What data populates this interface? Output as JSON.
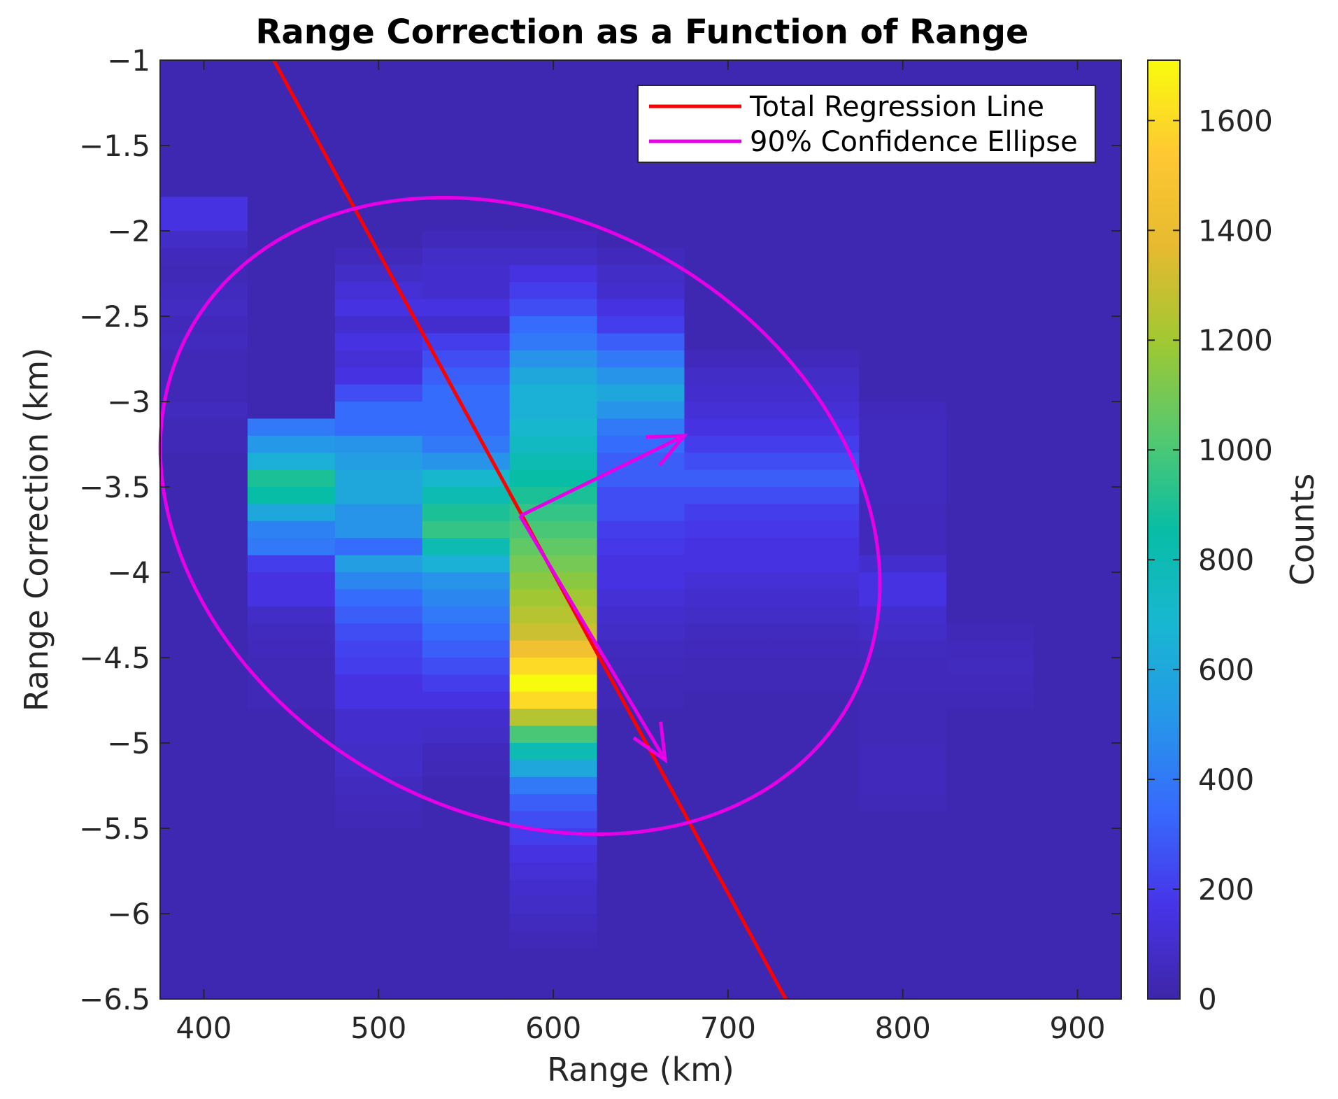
{
  "chart_data": {
    "type": "heatmap",
    "title": "Range Correction as a Function of Range",
    "xlabel": "Range (km)",
    "ylabel": "Range Correction (km)",
    "xlim": [
      375,
      925
    ],
    "ylim": [
      -6.5,
      -1
    ],
    "x_ticks": [
      400,
      500,
      600,
      700,
      800,
      900
    ],
    "x_tick_labels": [
      "400",
      "500",
      "600",
      "700",
      "800",
      "900"
    ],
    "y_ticks": [
      -1,
      -1.5,
      -2,
      -2.5,
      -3,
      -3.5,
      -4,
      -4.5,
      -5,
      -5.5,
      -6,
      -6.5
    ],
    "y_tick_labels": [
      "−1",
      "−1.5",
      "−2",
      "−2.5",
      "−3",
      "−3.5",
      "−4",
      "−4.5",
      "−5",
      "−5.5",
      "−6",
      "−6.5"
    ],
    "colorbar": {
      "label": "Counts",
      "lim": [
        0,
        1710
      ],
      "ticks": [
        0,
        200,
        400,
        600,
        800,
        1000,
        1200,
        1400,
        1600
      ],
      "tick_labels": [
        "0",
        "200",
        "400",
        "600",
        "800",
        "1000",
        "1200",
        "1400",
        "1600"
      ],
      "colormap": "parula"
    },
    "grid": false,
    "legend_position": "top-right",
    "bins": {
      "x_edges": [
        375,
        425,
        475,
        525,
        575,
        625,
        675,
        725,
        775,
        825,
        875,
        925
      ],
      "y_top": -1,
      "y_step": 0.1,
      "row_count": 55,
      "counts_by_column": [
        [
          25,
          25,
          25,
          25,
          25,
          25,
          25,
          25,
          150,
          150,
          80,
          50,
          40,
          60,
          70,
          50,
          60,
          40,
          40,
          40,
          60,
          40,
          40,
          25,
          25,
          25,
          25,
          25,
          25,
          25,
          25,
          25,
          25,
          25,
          25,
          25,
          25,
          25,
          25,
          25,
          25,
          25,
          25,
          25,
          25,
          25,
          25,
          25,
          25,
          25,
          25,
          25,
          25,
          25,
          25
        ],
        [
          25,
          25,
          25,
          25,
          25,
          25,
          25,
          25,
          25,
          25,
          25,
          25,
          25,
          25,
          25,
          25,
          25,
          25,
          25,
          25,
          25,
          400,
          520,
          640,
          900,
          850,
          600,
          430,
          400,
          200,
          150,
          150,
          80,
          60,
          50,
          40,
          40,
          40,
          25,
          25,
          25,
          25,
          25,
          25,
          25,
          25,
          25,
          25,
          25,
          25,
          25,
          25,
          25,
          25,
          25
        ],
        [
          25,
          25,
          25,
          25,
          25,
          25,
          25,
          25,
          25,
          25,
          25,
          50,
          80,
          120,
          150,
          100,
          150,
          120,
          150,
          250,
          350,
          350,
          500,
          550,
          600,
          600,
          500,
          500,
          350,
          550,
          450,
          350,
          300,
          250,
          220,
          200,
          150,
          150,
          100,
          100,
          80,
          80,
          60,
          50,
          40,
          25,
          25,
          25,
          25,
          25,
          25,
          25,
          25,
          25,
          25
        ],
        [
          25,
          25,
          25,
          25,
          25,
          25,
          25,
          25,
          25,
          25,
          50,
          80,
          100,
          100,
          150,
          100,
          200,
          250,
          300,
          350,
          350,
          350,
          400,
          500,
          700,
          800,
          900,
          950,
          800,
          650,
          500,
          450,
          400,
          350,
          300,
          250,
          200,
          150,
          100,
          80,
          50,
          40,
          25,
          25,
          25,
          25,
          25,
          25,
          25,
          25,
          25,
          25,
          25,
          25,
          25
        ],
        [
          25,
          25,
          25,
          25,
          25,
          25,
          25,
          25,
          25,
          25,
          50,
          80,
          150,
          200,
          250,
          350,
          400,
          500,
          600,
          650,
          650,
          700,
          750,
          800,
          850,
          900,
          950,
          1000,
          1050,
          1100,
          1150,
          1200,
          1250,
          1300,
          1450,
          1600,
          1710,
          1600,
          1250,
          1000,
          800,
          600,
          400,
          300,
          250,
          200,
          150,
          120,
          100,
          80,
          60,
          40,
          25,
          25,
          25
        ],
        [
          25,
          25,
          25,
          25,
          25,
          25,
          25,
          25,
          25,
          25,
          25,
          50,
          80,
          100,
          150,
          200,
          300,
          400,
          500,
          600,
          500,
          400,
          350,
          300,
          300,
          250,
          250,
          200,
          180,
          150,
          150,
          120,
          100,
          80,
          60,
          50,
          40,
          40,
          25,
          25,
          25,
          25,
          25,
          25,
          25,
          25,
          25,
          25,
          25,
          25,
          25,
          25,
          25,
          25,
          25
        ],
        [
          25,
          25,
          25,
          25,
          25,
          25,
          25,
          25,
          25,
          25,
          25,
          25,
          25,
          25,
          25,
          25,
          25,
          50,
          80,
          100,
          120,
          150,
          200,
          250,
          300,
          250,
          200,
          180,
          150,
          150,
          120,
          100,
          80,
          60,
          50,
          40,
          40,
          25,
          25,
          25,
          25,
          25,
          25,
          25,
          25,
          25,
          25,
          25,
          25,
          25,
          25,
          25,
          25,
          25,
          25
        ],
        [
          25,
          25,
          25,
          25,
          25,
          25,
          25,
          25,
          25,
          25,
          25,
          25,
          25,
          25,
          25,
          25,
          25,
          50,
          80,
          100,
          120,
          150,
          200,
          250,
          300,
          250,
          200,
          180,
          150,
          150,
          120,
          100,
          80,
          60,
          50,
          40,
          40,
          25,
          25,
          25,
          25,
          25,
          25,
          25,
          25,
          25,
          25,
          25,
          25,
          25,
          25,
          25,
          25,
          25,
          25
        ],
        [
          25,
          25,
          25,
          25,
          25,
          25,
          25,
          25,
          25,
          25,
          25,
          25,
          25,
          25,
          25,
          25,
          25,
          25,
          25,
          25,
          50,
          60,
          60,
          60,
          60,
          60,
          50,
          50,
          50,
          100,
          150,
          150,
          100,
          80,
          60,
          50,
          50,
          40,
          40,
          40,
          50,
          50,
          50,
          40,
          25,
          25,
          25,
          25,
          25,
          25,
          25,
          25,
          25,
          25,
          25
        ],
        [
          25,
          25,
          25,
          25,
          25,
          25,
          25,
          25,
          25,
          25,
          25,
          25,
          25,
          25,
          25,
          25,
          25,
          25,
          25,
          25,
          25,
          25,
          25,
          25,
          25,
          25,
          25,
          25,
          25,
          25,
          25,
          25,
          25,
          40,
          50,
          60,
          50,
          40,
          25,
          25,
          25,
          25,
          25,
          25,
          25,
          25,
          25,
          25,
          25,
          25,
          25,
          25,
          25,
          25,
          25
        ],
        [
          25,
          25,
          25,
          25,
          25,
          25,
          25,
          25,
          25,
          25,
          25,
          25,
          25,
          25,
          25,
          25,
          25,
          25,
          25,
          25,
          25,
          25,
          25,
          25,
          25,
          25,
          25,
          25,
          25,
          25,
          25,
          25,
          25,
          25,
          25,
          25,
          25,
          25,
          25,
          25,
          25,
          25,
          25,
          25,
          25,
          25,
          25,
          25,
          25,
          25,
          25,
          25,
          25,
          25,
          25
        ]
      ]
    },
    "series": [
      {
        "name": "Total Regression Line",
        "type": "line",
        "color": "#ff0000",
        "x": [
          440,
          733
        ],
        "y": [
          -1.0,
          -6.5
        ]
      },
      {
        "name": "90% Confidence Ellipse",
        "type": "ellipse",
        "color": "#e600e6",
        "center": [
          581,
          -3.67
        ],
        "semi_axes": [
          169,
          2.22
        ],
        "angle_deg": -60
      }
    ],
    "annotations": [
      {
        "type": "arrow",
        "color": "#e600e6",
        "from": [
          581,
          -3.67
        ],
        "to": [
          664,
          -5.1
        ]
      },
      {
        "type": "arrow",
        "color": "#e600e6",
        "from": [
          581,
          -3.67
        ],
        "to": [
          675,
          -3.2
        ]
      }
    ]
  }
}
